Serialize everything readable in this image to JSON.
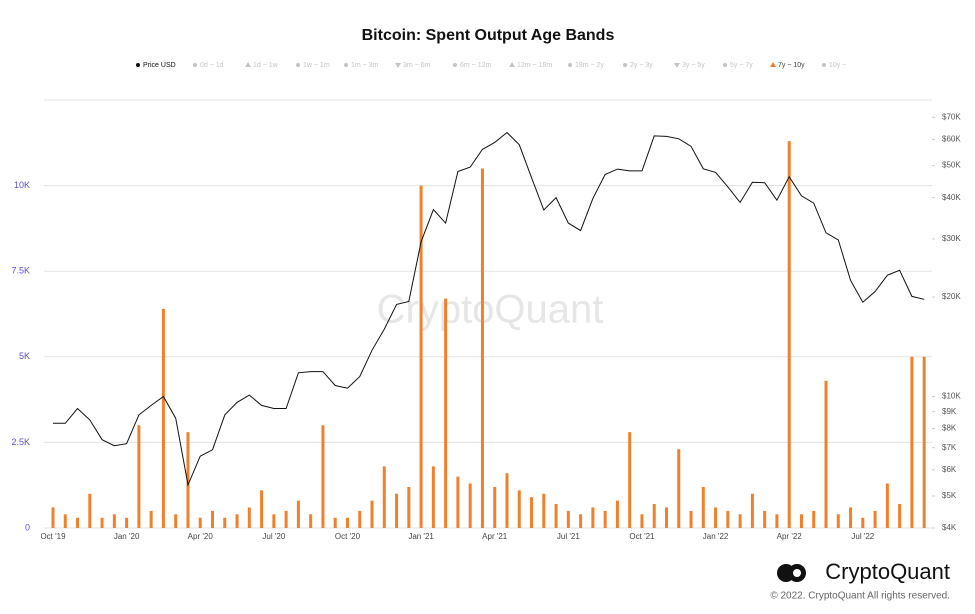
{
  "chart_data": {
    "type": "bar_line",
    "title": "Bitcoin: Spent Output Age Bands",
    "watermark": "CryptoQuant",
    "brand": "CryptoQuant",
    "copyright": "© 2022. CryptoQuant All rights reserved.",
    "categories": [
      "Oct '19",
      null,
      null,
      null,
      null,
      null,
      "Jan '20",
      null,
      null,
      null,
      null,
      null,
      "Apr '20",
      null,
      null,
      null,
      null,
      null,
      "Jul '20",
      null,
      null,
      null,
      null,
      null,
      "Oct '20",
      null,
      null,
      null,
      null,
      null,
      "Jan '21",
      null,
      null,
      null,
      null,
      null,
      "Apr '21",
      null,
      null,
      null,
      null,
      null,
      "Jul '21",
      null,
      null,
      null,
      null,
      null,
      "Oct '21",
      null,
      null,
      null,
      null,
      null,
      "Jan '22",
      null,
      null,
      null,
      null,
      null,
      "Apr '22",
      null,
      null,
      null,
      null,
      null,
      "Jul '22",
      null,
      null,
      null,
      null,
      null,
      null
    ],
    "series": [
      {
        "name": "Price USD",
        "color": "#111111",
        "marker": "circle",
        "axis": "y2",
        "values": [
          8300,
          8300,
          9200,
          8500,
          7400,
          7100,
          7200,
          8800,
          9400,
          10000,
          8600,
          5400,
          6600,
          6900,
          8800,
          9600,
          10100,
          9400,
          9200,
          9200,
          11800,
          11900,
          11900,
          10800,
          10600,
          11500,
          13800,
          16000,
          19000,
          19400,
          29400,
          36800,
          33500,
          48000,
          49500,
          56000,
          58800,
          63000,
          57800,
          46000,
          36700,
          40000,
          33500,
          31800,
          39800,
          47000,
          48800,
          48200,
          48200,
          61500,
          61300,
          60300,
          57200,
          48900,
          47700,
          43100,
          38700,
          44500,
          44400,
          39300,
          46300,
          40500,
          38500,
          31300,
          29800,
          22500,
          19300,
          20800,
          23300,
          24100,
          20100,
          19700,
          null
        ]
      },
      {
        "name": "7y ~ 10y",
        "color": "#f0802b",
        "marker": "triangle",
        "axis": "y",
        "values": [
          600,
          400,
          300,
          1000,
          300,
          400,
          300,
          3000,
          500,
          6400,
          400,
          2800,
          300,
          500,
          300,
          400,
          600,
          1100,
          400,
          500,
          800,
          400,
          3000,
          300,
          300,
          500,
          800,
          1800,
          1000,
          1200,
          10000,
          1800,
          6700,
          1500,
          1300,
          10500,
          1200,
          1600,
          1100,
          900,
          1000,
          700,
          500,
          400,
          600,
          500,
          800,
          2800,
          400,
          700,
          600,
          2300,
          500,
          1200,
          600,
          500,
          400,
          1000,
          500,
          400,
          11300,
          400,
          500,
          4300,
          400,
          600,
          300,
          500,
          1300,
          700,
          5000,
          5000,
          null
        ]
      }
    ],
    "inactive_series": [
      {
        "name": "0d ~ 1d",
        "marker": "circle"
      },
      {
        "name": "1d ~ 1w",
        "marker": "triangle"
      },
      {
        "name": "1w ~ 1m",
        "marker": "circle"
      },
      {
        "name": "1m ~ 3m",
        "marker": "circle"
      },
      {
        "name": "3m ~ 6m",
        "marker": "triangle-down"
      },
      {
        "name": "6m ~ 12m",
        "marker": "circle"
      },
      {
        "name": "12m ~ 18m",
        "marker": "triangle"
      },
      {
        "name": "18m ~ 2y",
        "marker": "circle"
      },
      {
        "name": "2y ~ 3y",
        "marker": "circle"
      },
      {
        "name": "3y ~ 5y",
        "marker": "triangle-down"
      },
      {
        "name": "5y ~ 7y",
        "marker": "circle"
      },
      {
        "name": "10y ~",
        "marker": "circle"
      }
    ],
    "inactive_color": "#c4c4c4",
    "ylim": [
      0,
      12500
    ],
    "yticks": [
      0,
      {
        "value": 2500,
        "label": "2.5K"
      },
      {
        "value": 5000,
        "label": "5K"
      },
      {
        "value": 7500,
        "label": "7.5K"
      },
      {
        "value": 10000,
        "label": "10K"
      }
    ],
    "y2lim": [
      4000,
      79000
    ],
    "y2_log": true,
    "y2ticks": [
      {
        "value": 4000,
        "label": "$4K"
      },
      {
        "value": 5000,
        "label": "$5K"
      },
      {
        "value": 6000,
        "label": "$6K"
      },
      {
        "value": 7000,
        "label": "$7K"
      },
      {
        "value": 8000,
        "label": "$8K"
      },
      {
        "value": 9000,
        "label": "$9K"
      },
      {
        "value": 10000,
        "label": "$10K"
      },
      {
        "value": 20000,
        "label": "$20K"
      },
      {
        "value": 30000,
        "label": "$30K"
      },
      {
        "value": 40000,
        "label": "$40K"
      },
      {
        "value": 50000,
        "label": "$50K"
      },
      {
        "value": 60000,
        "label": "$60K"
      },
      {
        "value": 70000,
        "label": "$70K"
      }
    ],
    "grid": true
  }
}
